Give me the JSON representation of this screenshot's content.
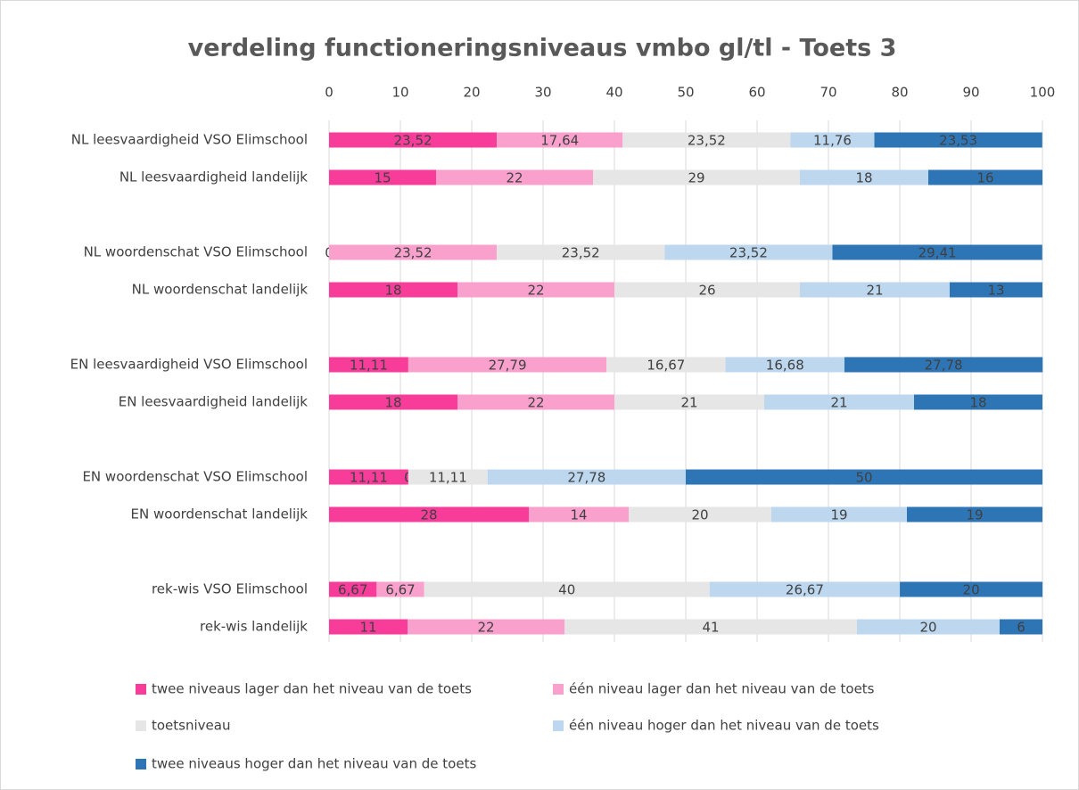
{
  "chart_data": {
    "type": "stacked-barh",
    "title": "verdeling functioneringsniveaus vmbo gl/tl  - Toets 3",
    "categories": [
      "NL leesvaardigheid VSO Elimschool",
      "NL leesvaardigheid landelijk",
      null,
      "NL woordenschat VSO Elimschool",
      "NL woordenschat landelijk",
      null,
      "EN leesvaardigheid VSO Elimschool",
      "EN leesvaardigheid landelijk",
      null,
      "EN woordenschat VSO Elimschool",
      "EN woordenschat landelijk",
      null,
      "rek-wis VSO Elimschool",
      "rek-wis landelijk"
    ],
    "series": [
      {
        "name": "twee niveaus lager dan het niveau van de toets",
        "color": "#f73c9a",
        "values": [
          23.52,
          15,
          null,
          0,
          18,
          null,
          11.11,
          18,
          null,
          11.11,
          28,
          null,
          6.67,
          11
        ],
        "value_labels": [
          "23,52",
          "15",
          null,
          "0",
          "18",
          null,
          "11,11",
          "18",
          null,
          "11,11",
          "28",
          null,
          "6,67",
          "11"
        ]
      },
      {
        "name": "één niveau lager dan het niveau van de toets",
        "color": "#f9a0cc",
        "values": [
          17.64,
          22,
          null,
          23.52,
          22,
          null,
          27.79,
          22,
          null,
          0,
          14,
          null,
          6.67,
          22
        ],
        "value_labels": [
          "17,64",
          "22",
          null,
          "23,52",
          "22",
          null,
          "27,79",
          "22",
          null,
          "0",
          "14",
          null,
          "6,67",
          "22"
        ]
      },
      {
        "name": "toetsniveau",
        "color": "#e6e6e6",
        "values": [
          23.52,
          29,
          null,
          23.52,
          26,
          null,
          16.67,
          21,
          null,
          11.11,
          20,
          null,
          40,
          41
        ],
        "value_labels": [
          "23,52",
          "29",
          null,
          "23,52",
          "26",
          null,
          "16,67",
          "21",
          null,
          "11,11",
          "20",
          null,
          "40",
          "41"
        ]
      },
      {
        "name": "één niveau hoger dan het niveau van de toets",
        "color": "#bdd7ee",
        "values": [
          11.76,
          18,
          null,
          23.52,
          21,
          null,
          16.68,
          21,
          null,
          27.78,
          19,
          null,
          26.67,
          20
        ],
        "value_labels": [
          "11,76",
          "18",
          null,
          "23,52",
          "21",
          null,
          "16,68",
          "21",
          null,
          "27,78",
          "19",
          null,
          "26,67",
          "20"
        ]
      },
      {
        "name": "twee niveaus hoger dan het niveau van de toets",
        "color": "#2e75b6",
        "values": [
          23.53,
          16,
          null,
          29.41,
          13,
          null,
          27.78,
          18,
          null,
          50,
          19,
          null,
          20,
          6
        ],
        "value_labels": [
          "23,53",
          "16",
          null,
          "29,41",
          "13",
          null,
          "27,78",
          "18",
          null,
          "50",
          "19",
          null,
          "20",
          "6"
        ]
      }
    ],
    "xlim": [
      0,
      100
    ],
    "xticks": [
      0,
      10,
      20,
      30,
      40,
      50,
      60,
      70,
      80,
      90,
      100
    ],
    "grid": true,
    "legend": "bottom"
  }
}
